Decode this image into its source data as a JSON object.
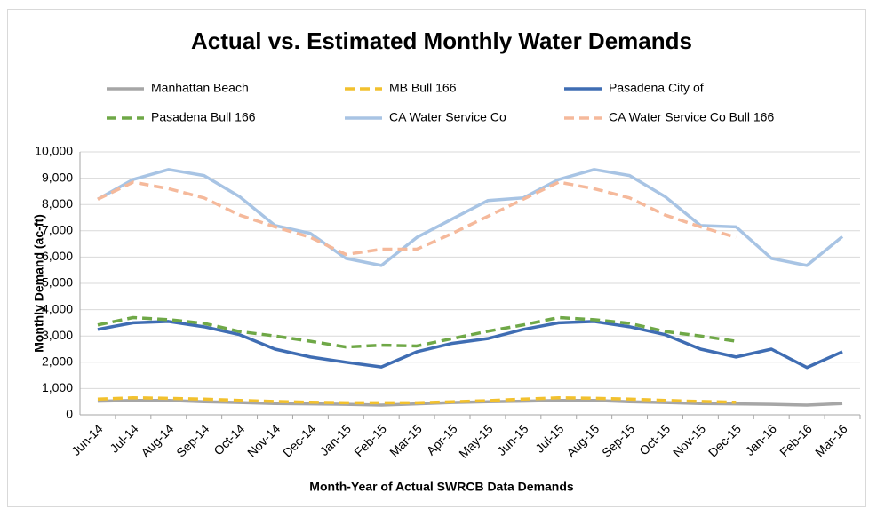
{
  "chart_data": {
    "type": "line",
    "title": "Actual vs. Estimated Monthly Water Demands",
    "x_label": "Month-Year of Actual SWRCB Data Demands",
    "y_label": "Monthly Demand (ac-ft)",
    "categories": [
      "Jun-14",
      "Jul-14",
      "Aug-14",
      "Sep-14",
      "Oct-14",
      "Nov-14",
      "Dec-14",
      "Jan-15",
      "Feb-15",
      "Mar-15",
      "Apr-15",
      "May-15",
      "Jun-15",
      "Jul-15",
      "Aug-15",
      "Sep-15",
      "Oct-15",
      "Nov-15",
      "Dec-15",
      "Jan-16",
      "Feb-16",
      "Mar-16"
    ],
    "ylim": [
      0,
      10000
    ],
    "yticks": [
      0,
      {
        "value": 1000,
        "label": "1,000"
      },
      {
        "value": 2000,
        "label": "2,000"
      },
      {
        "value": 3000,
        "label": "3,000"
      },
      {
        "value": 4000,
        "label": "4,000"
      },
      {
        "value": 5000,
        "label": "5,000"
      },
      {
        "value": 6000,
        "label": "6,000"
      },
      {
        "value": 7000,
        "label": "7,000"
      },
      {
        "value": 8000,
        "label": "8,000"
      },
      {
        "value": 9000,
        "label": "9,000"
      },
      {
        "value": 10000,
        "label": "10,000"
      }
    ],
    "grid": true,
    "series": [
      {
        "name": "Manhattan Beach",
        "color": "#a6a6a6",
        "dashed": false,
        "values": [
          520,
          550,
          550,
          500,
          470,
          430,
          420,
          400,
          370,
          420,
          470,
          500,
          520,
          550,
          550,
          500,
          470,
          430,
          420,
          400,
          370,
          430
        ]
      },
      {
        "name": "MB Bull 166",
        "color": "#f2c12e",
        "dashed": true,
        "values": [
          600,
          650,
          630,
          600,
          550,
          510,
          480,
          460,
          460,
          460,
          500,
          540,
          600,
          650,
          630,
          600,
          550,
          510,
          480,
          null,
          null,
          null
        ]
      },
      {
        "name": "Pasadena  City of",
        "color": "#3f6db3",
        "dashed": false,
        "values": [
          3250,
          3500,
          3550,
          3350,
          3050,
          2500,
          2200,
          2000,
          1820,
          2400,
          2720,
          2900,
          3250,
          3500,
          3550,
          3350,
          3050,
          2500,
          2200,
          2500,
          1800,
          2400
        ]
      },
      {
        "name": "Pasadena Bull 166",
        "color": "#6fa847",
        "dashed": true,
        "values": [
          3420,
          3700,
          3620,
          3480,
          3170,
          3000,
          2800,
          2580,
          2650,
          2620,
          2900,
          3180,
          3420,
          3700,
          3620,
          3480,
          3170,
          3000,
          2800,
          null,
          null,
          null
        ]
      },
      {
        "name": "CA Water Service Co",
        "color": "#a8c4e4",
        "dashed": false,
        "values": [
          8200,
          8950,
          9330,
          9100,
          8300,
          7200,
          6900,
          5950,
          5680,
          6750,
          7450,
          8150,
          8250,
          8950,
          9330,
          9100,
          8300,
          7200,
          7150,
          5950,
          5680,
          6780
        ]
      },
      {
        "name": "CA Water Service Co Bull 166",
        "color": "#f5b99b",
        "dashed": true,
        "values": [
          8200,
          8850,
          8600,
          8250,
          7600,
          7150,
          6750,
          6100,
          6300,
          6300,
          6900,
          7550,
          8200,
          8850,
          8600,
          8250,
          7600,
          7150,
          6750,
          null,
          null,
          null
        ]
      }
    ]
  }
}
